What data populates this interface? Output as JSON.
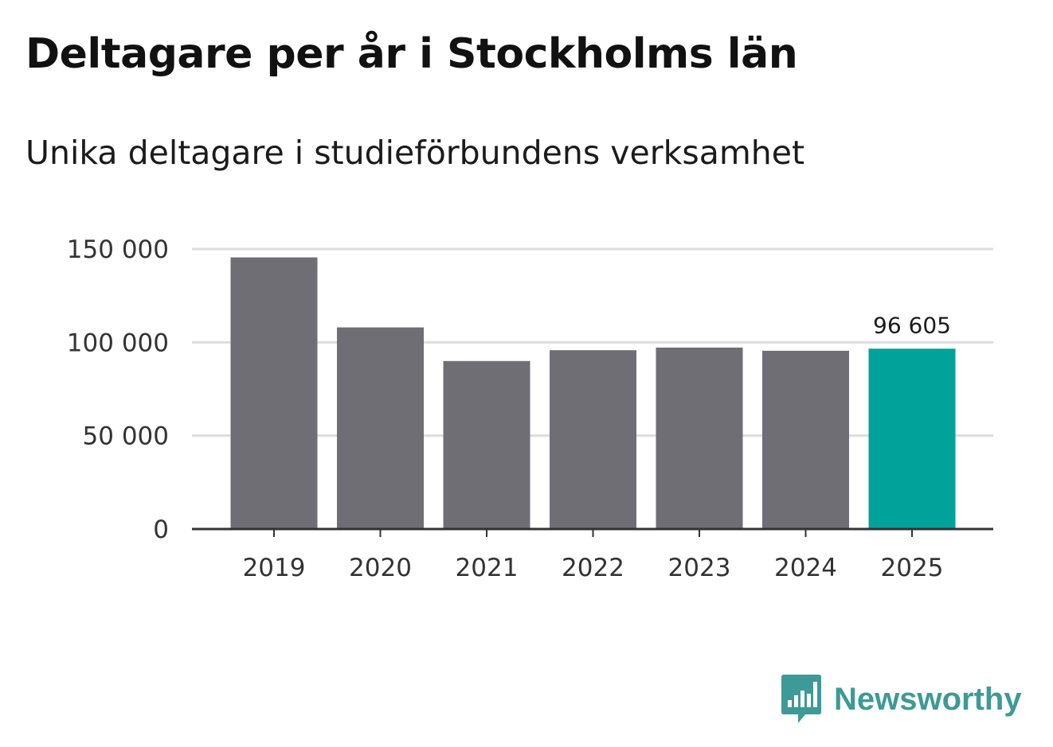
{
  "title": "Deltagare per år i Stockholms län",
  "subtitle": "Unika deltagare i studieförbundens verksamhet",
  "brand": {
    "name": "Newsworthy",
    "icon": "newsworthy-logo-icon",
    "color": "#3e9a96"
  },
  "colors": {
    "bar": "#6f6e74",
    "highlight": "#00a29a",
    "grid": "#dddddd",
    "axis": "#333333"
  },
  "chart_data": {
    "type": "bar",
    "title": "Deltagare per år i Stockholms län",
    "subtitle": "Unika deltagare i studieförbundens verksamhet",
    "xlabel": "",
    "ylabel": "",
    "categories": [
      "2019",
      "2020",
      "2021",
      "2022",
      "2023",
      "2024",
      "2025"
    ],
    "values": [
      145500,
      108000,
      90000,
      95800,
      97200,
      95500,
      96605
    ],
    "highlight_index": 6,
    "ylim": [
      0,
      150000
    ],
    "yticks": [
      0,
      50000,
      100000,
      150000
    ],
    "ytick_labels": [
      "0",
      "50 000",
      "100 000",
      "150 000"
    ],
    "data_labels": [
      {
        "category": "2025",
        "text": "96 605"
      }
    ],
    "grid": true,
    "legend": "none"
  }
}
